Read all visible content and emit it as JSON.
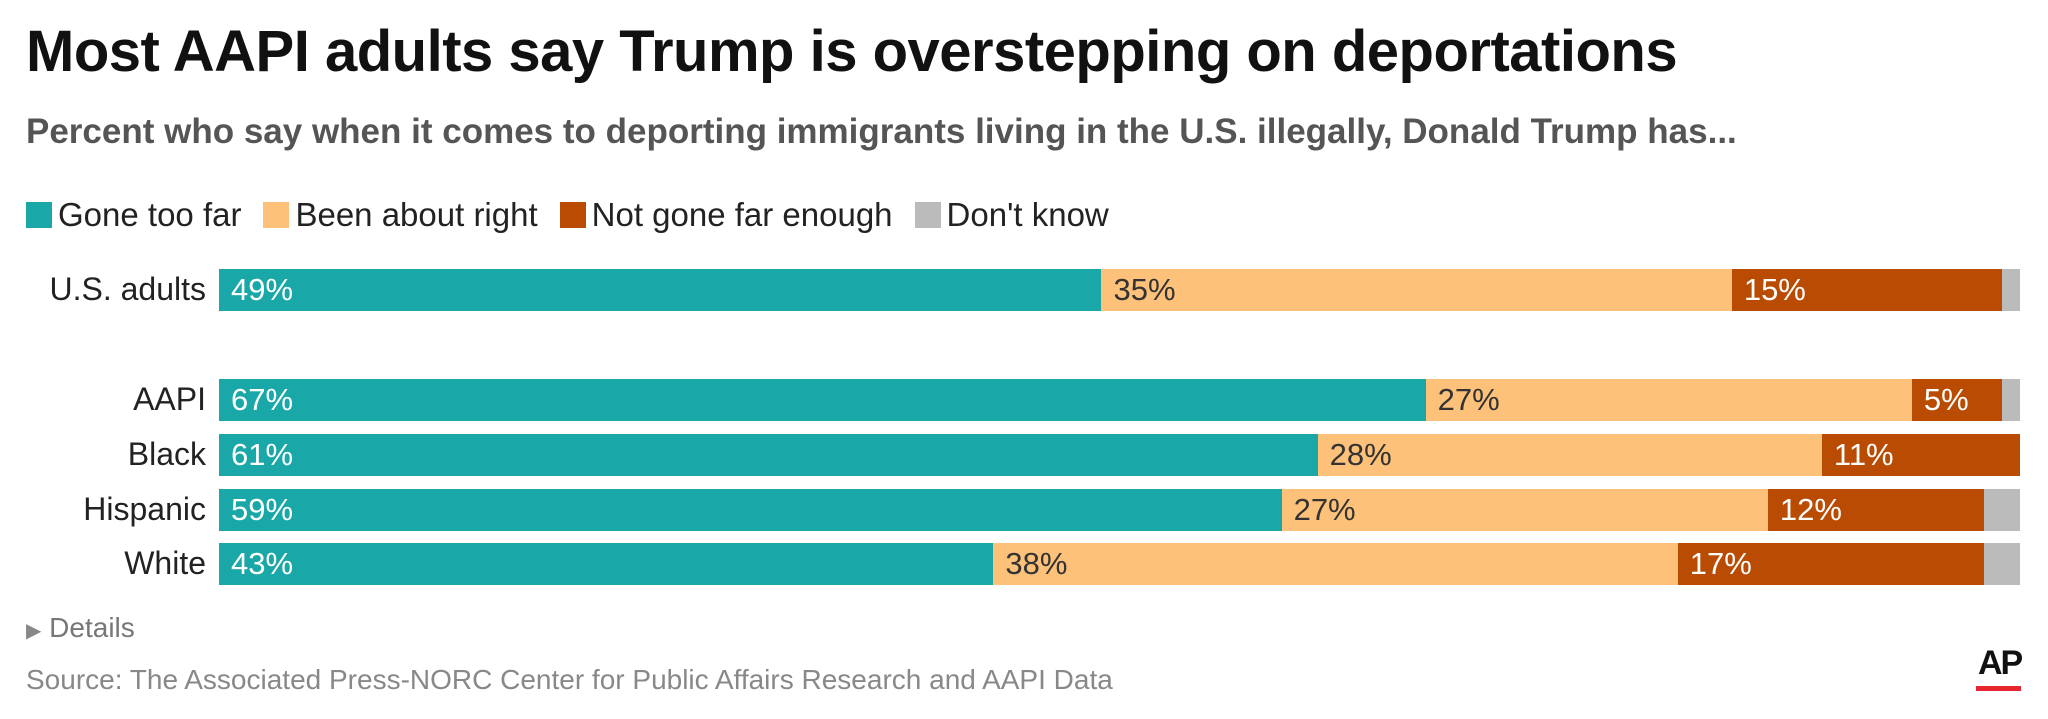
{
  "chart_data": {
    "type": "bar",
    "orientation": "horizontal",
    "stacked": true,
    "title": "Most AAPI adults say Trump is overstepping on deportations",
    "subtitle": "Percent who say when it comes to deporting immigrants living in the U.S. illegally, Donald Trump has...",
    "legend_placement": "top-left",
    "xlim": [
      0,
      100
    ],
    "grid": false,
    "categories": [
      "U.S. adults",
      "AAPI",
      "Black",
      "Hispanic",
      "White"
    ],
    "series": [
      {
        "name": "Gone too far",
        "color": "#1aa7a8",
        "values": [
          49,
          67,
          61,
          59,
          43
        ],
        "labels": [
          "49%",
          "67%",
          "61%",
          "59%",
          "43%"
        ]
      },
      {
        "name": "Been about right",
        "color": "#fec17a",
        "values": [
          35,
          27,
          28,
          27,
          38
        ],
        "labels": [
          "35%",
          "27%",
          "28%",
          "27%",
          "38%"
        ]
      },
      {
        "name": "Not gone far enough",
        "color": "#b94c02",
        "values": [
          15,
          5,
          11,
          12,
          17
        ],
        "labels": [
          "15%",
          "5%",
          "11%",
          "12%",
          "17%"
        ]
      },
      {
        "name": "Don't know",
        "color": "#bbbbbb",
        "values": [
          1,
          1,
          0,
          2,
          2
        ],
        "labels": [
          "",
          "",
          "",
          "",
          ""
        ]
      }
    ]
  },
  "footer": {
    "details": "Details",
    "details_icon": "triangle-right-icon",
    "source": "Source: The Associated Press-NORC Center for Public Affairs Research and AAPI Data",
    "logo": "AP"
  }
}
